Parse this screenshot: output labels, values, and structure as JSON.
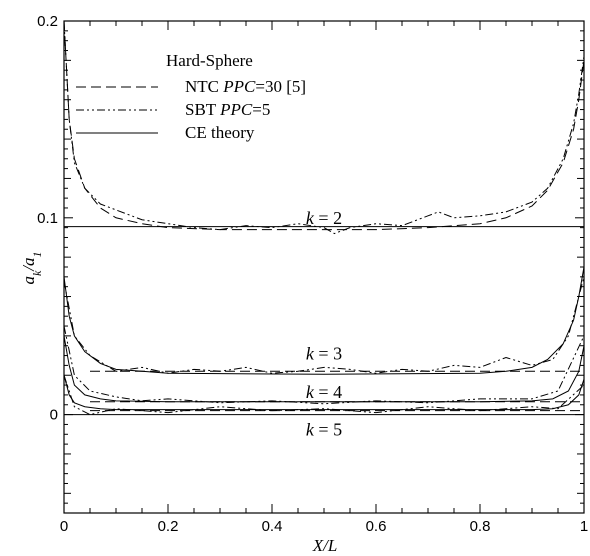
{
  "chart_data": {
    "type": "line",
    "title": "",
    "xlabel": "X/L",
    "ylabel_main": "a",
    "ylabel_sub1": "k",
    "ylabel_mid": "/a",
    "ylabel_sub2": "1",
    "xlim": [
      0,
      1
    ],
    "ylim": [
      -0.05,
      0.2
    ],
    "grid": false,
    "x_ticks": [
      0,
      0.2,
      0.4,
      0.6,
      0.8,
      1
    ],
    "x_tick_labels": [
      "0",
      "0.2",
      "0.4",
      "0.6",
      "0.8",
      "1"
    ],
    "y_ticks": [
      0,
      0.1,
      0.2
    ],
    "y_tick_labels": [
      "0",
      "0.1",
      "0.2"
    ],
    "legend": {
      "placement": "top-left",
      "title": "Hard-Sphere",
      "entries": [
        {
          "name_plain": "NTC ",
          "name_italic": "PPC",
          "name_rest": "=30 [5]",
          "style": "dashed"
        },
        {
          "name_plain": "SBT ",
          "name_italic": "PPC",
          "name_rest": "=5",
          "style": "dashdotdot"
        },
        {
          "name_plain": "CE theory",
          "name_italic": "",
          "name_rest": "",
          "style": "solid"
        }
      ]
    },
    "annotations": [
      {
        "italic": "k",
        "rest": " = 2",
        "x": 0.5,
        "y": 0.1
      },
      {
        "italic": "k",
        "rest": " = 3",
        "x": 0.5,
        "y": 0.031
      },
      {
        "italic": "k",
        "rest": " = 4",
        "x": 0.5,
        "y": 0.0115
      },
      {
        "italic": "k",
        "rest": " = 5",
        "x": 0.5,
        "y": -0.0075
      }
    ],
    "series": [
      {
        "group": "k=2",
        "style": "solid",
        "x": [
          0,
          1
        ],
        "y": [
          0.0955,
          0.0955
        ]
      },
      {
        "group": "k=2",
        "style": "dashed",
        "x": [
          0,
          0.01,
          0.02,
          0.04,
          0.07,
          0.1,
          0.15,
          0.2,
          0.3,
          0.4,
          0.5,
          0.6,
          0.7,
          0.8,
          0.85,
          0.9,
          0.93,
          0.96,
          0.98,
          0.99,
          1
        ],
        "y": [
          0.2,
          0.15,
          0.13,
          0.115,
          0.105,
          0.1,
          0.097,
          0.095,
          0.094,
          0.094,
          0.094,
          0.094,
          0.095,
          0.097,
          0.1,
          0.106,
          0.114,
          0.128,
          0.145,
          0.16,
          0.18
        ]
      },
      {
        "group": "k=2",
        "style": "dashdotdot",
        "x": [
          0,
          0.01,
          0.02,
          0.04,
          0.07,
          0.1,
          0.15,
          0.2,
          0.25,
          0.3,
          0.35,
          0.4,
          0.45,
          0.5,
          0.52,
          0.55,
          0.6,
          0.65,
          0.7,
          0.72,
          0.75,
          0.8,
          0.85,
          0.9,
          0.93,
          0.96,
          0.98,
          0.99,
          1
        ],
        "y": [
          0.2,
          0.15,
          0.128,
          0.115,
          0.107,
          0.104,
          0.099,
          0.097,
          0.095,
          0.094,
          0.096,
          0.095,
          0.097,
          0.095,
          0.092,
          0.095,
          0.097,
          0.096,
          0.101,
          0.103,
          0.1,
          0.101,
          0.103,
          0.108,
          0.115,
          0.13,
          0.148,
          0.163,
          0.182
        ]
      },
      {
        "group": "k=3",
        "style": "solid",
        "x": [
          0,
          0.01,
          0.02,
          0.04,
          0.07,
          0.1,
          0.15,
          0.2,
          0.5,
          0.8,
          0.85,
          0.9,
          0.93,
          0.96,
          0.98,
          0.99,
          1
        ],
        "y": [
          0.07,
          0.05,
          0.04,
          0.032,
          0.026,
          0.023,
          0.022,
          0.021,
          0.0205,
          0.021,
          0.022,
          0.024,
          0.028,
          0.036,
          0.048,
          0.06,
          0.075
        ]
      },
      {
        "group": "k=3",
        "style": "dashed",
        "x": [
          0.05,
          1
        ],
        "y": [
          0.022,
          0.022
        ]
      },
      {
        "group": "k=3",
        "style": "dashdotdot",
        "x": [
          0,
          0.02,
          0.05,
          0.1,
          0.15,
          0.2,
          0.25,
          0.3,
          0.35,
          0.4,
          0.45,
          0.5,
          0.55,
          0.6,
          0.65,
          0.7,
          0.75,
          0.8,
          0.85,
          0.9,
          0.94,
          0.97,
          1
        ],
        "y": [
          0.068,
          0.04,
          0.03,
          0.022,
          0.024,
          0.021,
          0.023,
          0.022,
          0.024,
          0.021,
          0.022,
          0.024,
          0.023,
          0.021,
          0.023,
          0.022,
          0.025,
          0.024,
          0.029,
          0.025,
          0.028,
          0.04,
          0.07
        ]
      },
      {
        "group": "k=4",
        "style": "solid",
        "x": [
          0,
          0.01,
          0.02,
          0.04,
          0.07,
          0.1,
          0.2,
          0.5,
          0.8,
          0.9,
          0.94,
          0.97,
          0.99,
          1
        ],
        "y": [
          0.04,
          0.025,
          0.015,
          0.01,
          0.008,
          0.007,
          0.0065,
          0.0065,
          0.0065,
          0.007,
          0.008,
          0.012,
          0.022,
          0.035
        ]
      },
      {
        "group": "k=4",
        "style": "dashed",
        "x": [
          0.05,
          1
        ],
        "y": [
          0.0065,
          0.0065
        ]
      },
      {
        "group": "k=4",
        "style": "dashdotdot",
        "x": [
          0,
          0.02,
          0.05,
          0.1,
          0.15,
          0.2,
          0.3,
          0.4,
          0.5,
          0.6,
          0.7,
          0.8,
          0.9,
          0.95,
          1
        ],
        "y": [
          0.045,
          0.02,
          0.012,
          0.009,
          0.007,
          0.008,
          0.006,
          0.007,
          0.0055,
          0.007,
          0.006,
          0.008,
          0.008,
          0.012,
          0.04
        ]
      },
      {
        "group": "k=5",
        "style": "solid",
        "x": [
          0,
          0.01,
          0.02,
          0.04,
          0.07,
          0.1,
          0.5,
          0.9,
          0.94,
          0.97,
          0.99,
          1
        ],
        "y": [
          0.02,
          0.01,
          0.006,
          0.004,
          0.003,
          0.0025,
          0.0025,
          0.0025,
          0.003,
          0.005,
          0.01,
          0.018
        ]
      },
      {
        "group": "k=5",
        "style": "dashed",
        "x": [
          0.05,
          1
        ],
        "y": [
          0.002,
          0.002
        ]
      },
      {
        "group": "k=5",
        "style": "dashdotdot",
        "x": [
          0,
          0.02,
          0.05,
          0.1,
          0.2,
          0.3,
          0.4,
          0.5,
          0.6,
          0.7,
          0.8,
          0.9,
          0.95,
          1
        ],
        "y": [
          0.02,
          0.004,
          0.0,
          0.003,
          0.001,
          0.004,
          0.002,
          0.003,
          0.001,
          0.004,
          0.002,
          0.004,
          0.003,
          0.015
        ]
      }
    ]
  }
}
